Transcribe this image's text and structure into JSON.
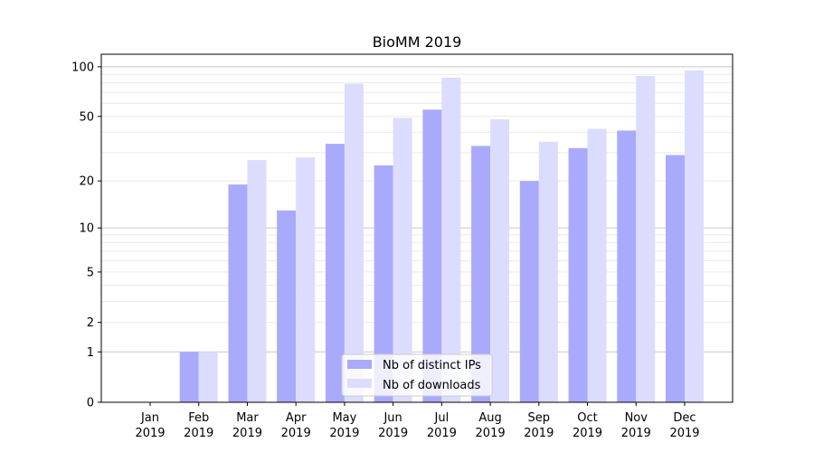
{
  "chart_data": {
    "type": "bar",
    "title": "BioMM 2019",
    "xlabel": "",
    "ylabel": "",
    "yscale": "log10(1+y)",
    "ylim": [
      0,
      119
    ],
    "grid": true,
    "legend_position": "bottom-center",
    "categories": [
      [
        "Jan",
        "2019"
      ],
      [
        "Feb",
        "2019"
      ],
      [
        "Mar",
        "2019"
      ],
      [
        "Apr",
        "2019"
      ],
      [
        "May",
        "2019"
      ],
      [
        "Jun",
        "2019"
      ],
      [
        "Jul",
        "2019"
      ],
      [
        "Aug",
        "2019"
      ],
      [
        "Sep",
        "2019"
      ],
      [
        "Oct",
        "2019"
      ],
      [
        "Nov",
        "2019"
      ],
      [
        "Dec",
        "2019"
      ]
    ],
    "yticks": [
      0,
      1,
      2,
      5,
      10,
      20,
      50,
      100
    ],
    "ytick_labels": [
      "0",
      "1",
      "2",
      "5",
      "10",
      "20",
      "50",
      "100"
    ],
    "series": [
      {
        "name": "Nb of distinct IPs",
        "color": "#aaaafc",
        "values": [
          0,
          1,
          19,
          13,
          34,
          25,
          55,
          33,
          20,
          32,
          41,
          29
        ]
      },
      {
        "name": "Nb of downloads",
        "color": "#dcdcfe",
        "values": [
          0,
          1,
          27,
          28,
          79,
          49,
          86,
          48,
          35,
          42,
          88,
          95
        ]
      }
    ]
  }
}
